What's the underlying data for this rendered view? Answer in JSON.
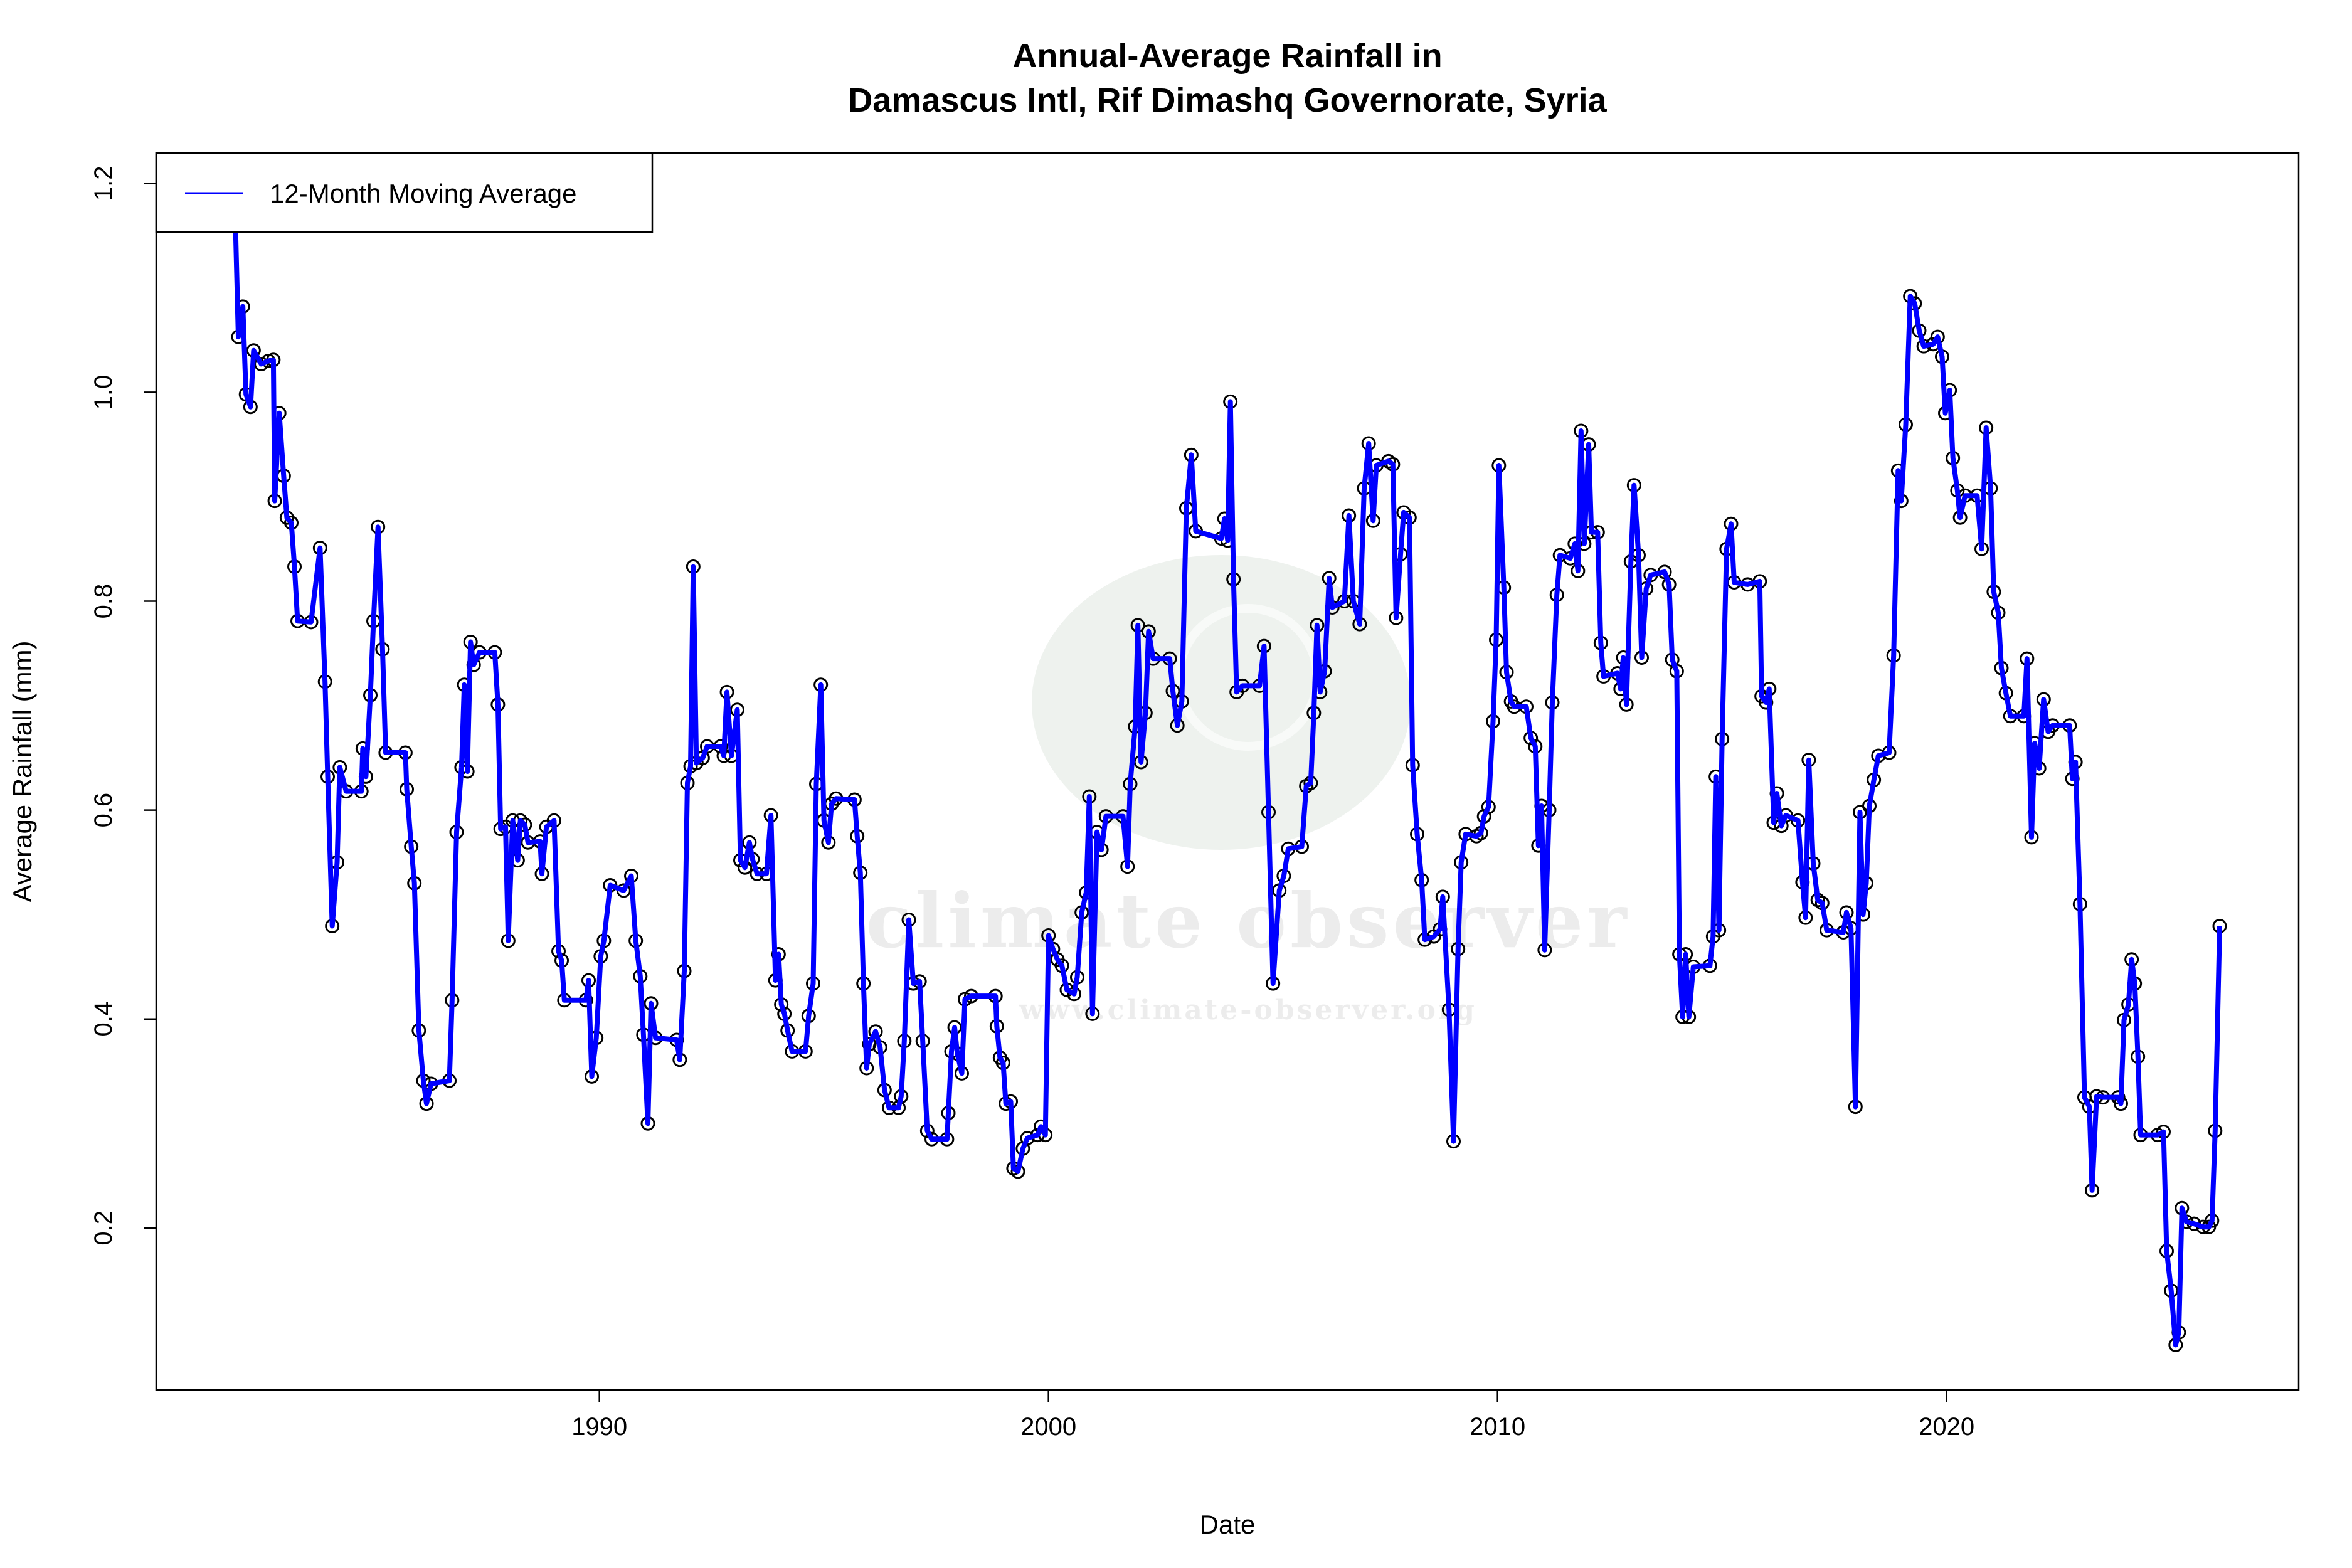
{
  "chart_data": {
    "type": "line",
    "title": "Annual-Average Rainfall in",
    "subtitle": "Damascus Intl, Rif Dimashq Governorate, Syria",
    "xlabel": "Date",
    "ylabel": "Average Rainfall (mm)",
    "xlim": [
      1980.13,
      2027.84
    ],
    "ylim": [
      0.045,
      1.229
    ],
    "xticks": [
      1990,
      2000,
      2010,
      2020
    ],
    "xtick_labels": [
      "1990",
      "2000",
      "2010",
      "2020"
    ],
    "yticks": [
      0.2,
      0.4,
      0.6,
      0.8,
      1.0,
      1.2
    ],
    "ytick_labels": [
      "0.2",
      "0.4",
      "0.6",
      "0.8",
      "1.0",
      "1.2"
    ],
    "grid": false,
    "legend": {
      "position": "top-left",
      "entries": [
        "12-Month Moving Average"
      ]
    },
    "series": [
      {
        "name": "12-Month Moving Average",
        "color": "#0000ff",
        "marker_color": "#000000",
        "x": [
          1981.89,
          1981.96,
          1982.06,
          1982.13,
          1982.23,
          1982.3,
          1982.47,
          1982.63,
          1982.74,
          1982.77,
          1982.87,
          1982.97,
          1983.04,
          1983.14,
          1983.21,
          1983.28,
          1983.58,
          1983.78,
          1983.89,
          1983.95,
          1984.05,
          1984.16,
          1984.22,
          1984.36,
          1984.7,
          1984.73,
          1984.8,
          1984.9,
          1984.97,
          1985.07,
          1985.17,
          1985.24,
          1985.68,
          1985.71,
          1985.81,
          1985.88,
          1985.98,
          1986.08,
          1986.15,
          1986.25,
          1986.66,
          1986.72,
          1986.82,
          1986.93,
          1986.99,
          1987.06,
          1987.13,
          1987.2,
          1987.33,
          1987.67,
          1987.74,
          1987.8,
          1987.91,
          1987.97,
          1988.07,
          1988.18,
          1988.24,
          1988.34,
          1988.41,
          1988.68,
          1988.72,
          1988.82,
          1988.99,
          1989.09,
          1989.16,
          1989.22,
          1989.7,
          1989.76,
          1989.83,
          1989.93,
          1990.03,
          1990.1,
          1990.24,
          1990.54,
          1990.71,
          1990.81,
          1990.91,
          1990.98,
          1991.08,
          1991.15,
          1991.25,
          1991.72,
          1991.79,
          1991.89,
          1991.96,
          1992.03,
          1992.09,
          1992.16,
          1992.3,
          1992.4,
          1992.7,
          1992.77,
          1992.84,
          1992.94,
          1993.07,
          1993.14,
          1993.24,
          1993.34,
          1993.41,
          1993.51,
          1993.72,
          1993.82,
          1993.92,
          1993.99,
          1994.05,
          1994.12,
          1994.19,
          1994.29,
          1994.59,
          1994.66,
          1994.76,
          1994.83,
          1994.93,
          1995.0,
          1995.1,
          1995.17,
          1995.27,
          1995.68,
          1995.74,
          1995.81,
          1995.88,
          1995.95,
          1996.01,
          1996.15,
          1996.25,
          1996.35,
          1996.45,
          1996.66,
          1996.72,
          1996.79,
          1996.89,
          1996.99,
          1997.13,
          1997.2,
          1997.3,
          1997.4,
          1997.74,
          1997.77,
          1997.84,
          1997.91,
          1997.97,
          1998.07,
          1998.14,
          1998.28,
          1998.82,
          1998.85,
          1998.92,
          1998.99,
          1999.05,
          1999.16,
          1999.22,
          1999.32,
          1999.43,
          1999.53,
          1999.76,
          1999.83,
          1999.93,
          2000.0,
          2000.1,
          2000.2,
          2000.3,
          2000.41,
          2000.57,
          2000.64,
          2000.74,
          2000.84,
          2000.91,
          2000.98,
          2001.08,
          2001.18,
          2001.28,
          2001.66,
          2001.76,
          2001.82,
          2001.93,
          2001.99,
          2002.06,
          2002.16,
          2002.23,
          2002.33,
          2002.7,
          2002.77,
          2002.87,
          2002.97,
          2003.07,
          2003.18,
          2003.28,
          2003.85,
          2003.92,
          2003.99,
          2004.05,
          2004.12,
          2004.19,
          2004.32,
          2004.7,
          2004.8,
          2004.9,
          2005.0,
          2005.14,
          2005.24,
          2005.34,
          2005.64,
          2005.74,
          2005.84,
          2005.91,
          2005.98,
          2006.05,
          2006.15,
          2006.25,
          2006.32,
          2006.59,
          2006.69,
          2006.79,
          2006.93,
          2007.03,
          2007.13,
          2007.23,
          2007.3,
          2007.57,
          2007.67,
          2007.74,
          2007.84,
          2007.91,
          2008.04,
          2008.11,
          2008.21,
          2008.31,
          2008.38,
          2008.58,
          2008.72,
          2008.78,
          2008.92,
          2009.02,
          2009.12,
          2009.19,
          2009.29,
          2009.53,
          2009.63,
          2009.7,
          2009.8,
          2009.9,
          2009.97,
          2010.03,
          2010.14,
          2010.2,
          2010.3,
          2010.37,
          2010.64,
          2010.74,
          2010.84,
          2010.91,
          2010.98,
          2011.05,
          2011.15,
          2011.22,
          2011.32,
          2011.39,
          2011.62,
          2011.72,
          2011.79,
          2011.86,
          2011.93,
          2012.03,
          2012.09,
          2012.23,
          2012.3,
          2012.36,
          2012.67,
          2012.74,
          2012.8,
          2012.87,
          2012.97,
          2013.04,
          2013.14,
          2013.21,
          2013.31,
          2013.41,
          2013.72,
          2013.82,
          2013.89,
          2013.99,
          2014.05,
          2014.12,
          2014.19,
          2014.26,
          2014.36,
          2014.73,
          2014.8,
          2014.86,
          2014.93,
          2015.0,
          2015.1,
          2015.2,
          2015.27,
          2015.57,
          2015.84,
          2015.88,
          2015.98,
          2016.05,
          2016.15,
          2016.22,
          2016.32,
          2016.42,
          2016.69,
          2016.79,
          2016.86,
          2016.93,
          2017.03,
          2017.13,
          2017.23,
          2017.33,
          2017.7,
          2017.77,
          2017.87,
          2017.97,
          2018.07,
          2018.14,
          2018.21,
          2018.28,
          2018.38,
          2018.48,
          2018.72,
          2018.82,
          2018.92,
          2018.99,
          2019.09,
          2019.19,
          2019.29,
          2019.39,
          2019.49,
          2019.7,
          2019.8,
          2019.9,
          2019.97,
          2020.07,
          2020.14,
          2020.24,
          2020.3,
          2020.41,
          2020.68,
          2020.78,
          2020.88,
          2020.98,
          2021.05,
          2021.15,
          2021.22,
          2021.32,
          2021.42,
          2021.72,
          2021.79,
          2021.89,
          2021.96,
          2022.06,
          2022.16,
          2022.26,
          2022.36,
          2022.74,
          2022.8,
          2022.87,
          2022.97,
          2023.07,
          2023.18,
          2023.24,
          2023.34,
          2023.48,
          2023.82,
          2023.88,
          2023.95,
          2024.05,
          2024.12,
          2024.19,
          2024.26,
          2024.32,
          2024.7,
          2024.83,
          2024.9,
          2025.0,
          2025.1,
          2025.17,
          2025.24,
          2025.34,
          2025.51,
          2025.71,
          2025.84,
          2025.91,
          2025.98,
          2026.08
        ],
        "y": [
          1.17,
          1.053,
          1.082,
          0.998,
          0.986,
          1.04,
          1.027,
          1.03,
          1.031,
          0.896,
          0.98,
          0.92,
          0.88,
          0.875,
          0.833,
          0.781,
          0.78,
          0.851,
          0.723,
          0.632,
          0.489,
          0.55,
          0.641,
          0.618,
          0.618,
          0.659,
          0.632,
          0.71,
          0.781,
          0.871,
          0.754,
          0.655,
          0.655,
          0.62,
          0.565,
          0.53,
          0.389,
          0.341,
          0.319,
          0.338,
          0.341,
          0.418,
          0.579,
          0.641,
          0.72,
          0.637,
          0.761,
          0.739,
          0.751,
          0.751,
          0.701,
          0.582,
          0.584,
          0.475,
          0.59,
          0.552,
          0.59,
          0.586,
          0.569,
          0.57,
          0.539,
          0.584,
          0.59,
          0.465,
          0.456,
          0.418,
          0.418,
          0.437,
          0.345,
          0.382,
          0.46,
          0.475,
          0.528,
          0.523,
          0.537,
          0.475,
          0.441,
          0.385,
          0.3,
          0.415,
          0.382,
          0.38,
          0.361,
          0.446,
          0.626,
          0.642,
          0.833,
          0.645,
          0.65,
          0.661,
          0.661,
          0.652,
          0.713,
          0.652,
          0.696,
          0.552,
          0.545,
          0.569,
          0.553,
          0.539,
          0.539,
          0.595,
          0.437,
          0.462,
          0.414,
          0.405,
          0.389,
          0.369,
          0.369,
          0.403,
          0.434,
          0.625,
          0.72,
          0.59,
          0.569,
          0.606,
          0.611,
          0.61,
          0.575,
          0.54,
          0.434,
          0.353,
          0.376,
          0.388,
          0.373,
          0.332,
          0.315,
          0.315,
          0.326,
          0.379,
          0.495,
          0.434,
          0.436,
          0.379,
          0.293,
          0.285,
          0.285,
          0.31,
          0.369,
          0.392,
          0.367,
          0.348,
          0.419,
          0.422,
          0.422,
          0.393,
          0.363,
          0.358,
          0.319,
          0.321,
          0.257,
          0.254,
          0.276,
          0.286,
          0.289,
          0.297,
          0.289,
          0.48,
          0.467,
          0.457,
          0.451,
          0.428,
          0.424,
          0.44,
          0.502,
          0.521,
          0.613,
          0.405,
          0.579,
          0.562,
          0.594,
          0.594,
          0.546,
          0.625,
          0.68,
          0.777,
          0.646,
          0.693,
          0.771,
          0.745,
          0.745,
          0.714,
          0.681,
          0.704,
          0.889,
          0.94,
          0.867,
          0.86,
          0.879,
          0.858,
          0.991,
          0.821,
          0.713,
          0.719,
          0.719,
          0.757,
          0.598,
          0.434,
          0.523,
          0.537,
          0.563,
          0.565,
          0.623,
          0.626,
          0.693,
          0.777,
          0.713,
          0.733,
          0.822,
          0.794,
          0.8,
          0.882,
          0.8,
          0.778,
          0.908,
          0.951,
          0.877,
          0.93,
          0.934,
          0.931,
          0.784,
          0.845,
          0.885,
          0.88,
          0.643,
          0.577,
          0.533,
          0.476,
          0.479,
          0.486,
          0.517,
          0.409,
          0.283,
          0.467,
          0.55,
          0.577,
          0.575,
          0.578,
          0.594,
          0.603,
          0.685,
          0.763,
          0.93,
          0.813,
          0.732,
          0.704,
          0.699,
          0.699,
          0.669,
          0.661,
          0.566,
          0.604,
          0.466,
          0.6,
          0.703,
          0.806,
          0.844,
          0.841,
          0.855,
          0.829,
          0.963,
          0.855,
          0.95,
          0.866,
          0.866,
          0.76,
          0.728,
          0.731,
          0.716,
          0.746,
          0.701,
          0.838,
          0.911,
          0.844,
          0.746,
          0.812,
          0.825,
          0.828,
          0.816,
          0.744,
          0.733,
          0.462,
          0.402,
          0.462,
          0.402,
          0.45,
          0.451,
          0.479,
          0.632,
          0.485,
          0.668,
          0.85,
          0.874,
          0.818,
          0.816,
          0.819,
          0.709,
          0.703,
          0.716,
          0.588,
          0.616,
          0.585,
          0.595,
          0.59,
          0.531,
          0.497,
          0.648,
          0.549,
          0.514,
          0.511,
          0.485,
          0.483,
          0.502,
          0.487,
          0.316,
          0.598,
          0.5,
          0.53,
          0.604,
          0.629,
          0.652,
          0.655,
          0.748,
          0.925,
          0.896,
          0.969,
          1.092,
          1.085,
          1.059,
          1.044,
          1.046,
          1.053,
          1.034,
          0.98,
          1.002,
          0.937,
          0.906,
          0.88,
          0.901,
          0.901,
          0.85,
          0.966,
          0.908,
          0.809,
          0.789,
          0.736,
          0.712,
          0.69,
          0.69,
          0.745,
          0.574,
          0.664,
          0.64,
          0.706,
          0.675,
          0.681,
          0.681,
          0.63,
          0.646,
          0.51,
          0.325,
          0.316,
          0.236,
          0.326,
          0.325,
          0.325,
          0.319,
          0.399,
          0.414,
          0.457,
          0.434,
          0.364,
          0.289,
          0.289,
          0.292,
          0.178,
          0.14,
          0.088,
          0.1,
          0.219,
          0.206,
          0.204,
          0.201,
          0.201,
          0.207,
          0.293,
          0.489
        ]
      }
    ]
  },
  "watermark": {
    "logo_text": "climate observer",
    "url_text": "www.climate-observer.org",
    "color": "#eef2ee"
  }
}
